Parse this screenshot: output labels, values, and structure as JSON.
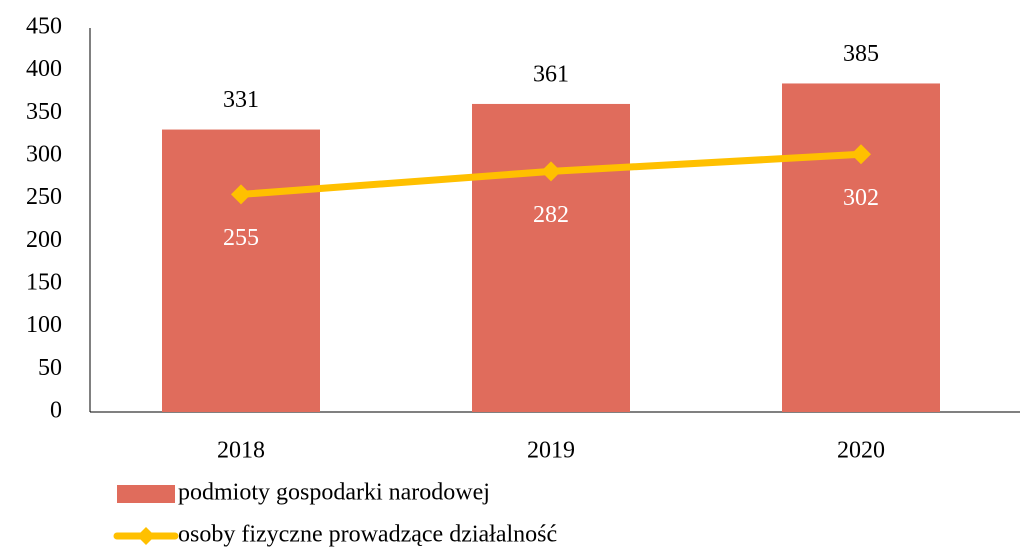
{
  "chart_data": {
    "type": "bar",
    "categories": [
      "2018",
      "2019",
      "2020"
    ],
    "series": [
      {
        "name": "podmioty gospodarki narodowej",
        "type": "bar",
        "color": "#e06c5c",
        "values": [
          331,
          361,
          385
        ]
      },
      {
        "name": "osoby fizyczne prowadzące działalność",
        "type": "line",
        "color": "#ffc000",
        "values": [
          255,
          282,
          302
        ]
      }
    ],
    "ylim": [
      0,
      450
    ],
    "yticks": [
      0,
      50,
      100,
      150,
      200,
      250,
      300,
      350,
      400,
      450
    ],
    "grid": false
  }
}
